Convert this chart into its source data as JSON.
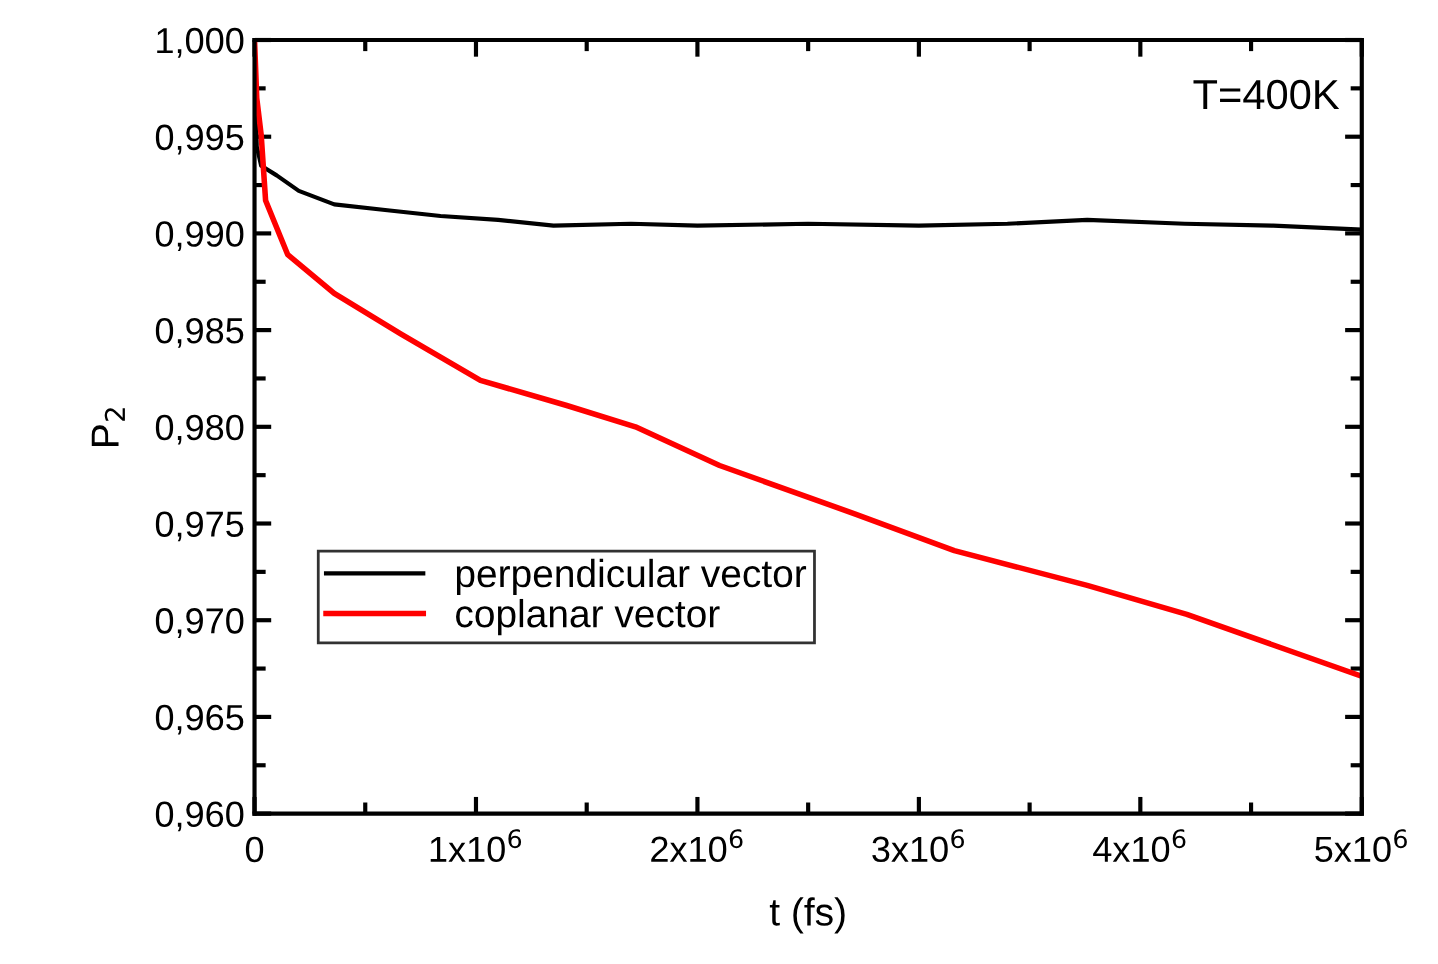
{
  "chart_data": {
    "type": "line",
    "xlabel": "t (fs)",
    "ylabel": "P$_{2}$",
    "annotations": [
      "T=400K"
    ],
    "xlim": [
      0,
      5000000
    ],
    "ylim": [
      0.96,
      1.0
    ],
    "xticks": [
      0,
      {
        "value": 1000000,
        "label": "1x10$^{6}$"
      },
      {
        "value": 2000000,
        "label": "2x10$^{6}$"
      },
      {
        "value": 3000000,
        "label": "3x10$^{6}$"
      },
      {
        "value": 4000000,
        "label": "4x10$^{6}$"
      },
      {
        "value": 5000000,
        "label": "5x10$^{6}$"
      }
    ],
    "yticks": [
      {
        "value": 0.96,
        "label": "0,960"
      },
      {
        "value": 0.965,
        "label": "0,965"
      },
      {
        "value": 0.97,
        "label": "0,970"
      },
      {
        "value": 0.975,
        "label": "0,975"
      },
      {
        "value": 0.98,
        "label": "0,980"
      },
      {
        "value": 0.985,
        "label": "0,985"
      },
      {
        "value": 0.99,
        "label": "0,990"
      },
      {
        "value": 0.995,
        "label": "0,995"
      },
      {
        "value": 1.0,
        "label": "1,000"
      }
    ],
    "grid": false,
    "legend": "left",
    "marker": "none",
    "line_style": "solid",
    "series": [
      {
        "name": "perpendicular vector",
        "color": "#000000",
        "x": [
          0,
          10000,
          30000,
          100000,
          200000,
          360000,
          600000,
          840000,
          1100000,
          1350000,
          1700000,
          2000000,
          2500000,
          3000000,
          3400000,
          3760000,
          4200000,
          4600000,
          5000000
        ],
        "values": [
          1.0,
          0.9945,
          0.9935,
          0.993,
          0.9922,
          0.9915,
          0.9912,
          0.9909,
          0.9907,
          0.9904,
          0.9905,
          0.9904,
          0.9905,
          0.9904,
          0.9905,
          0.9907,
          0.9905,
          0.9904,
          0.9902
        ]
      },
      {
        "name": "coplanar vector",
        "color": "#ff0000",
        "x": [
          0,
          10000,
          30000,
          50000,
          150000,
          360000,
          660000,
          1020000,
          1410000,
          1720000,
          2100000,
          2710000,
          3160000,
          3760000,
          4210000,
          5000000
        ],
        "values": [
          1.0,
          0.997,
          0.9951,
          0.9917,
          0.9889,
          0.9869,
          0.9848,
          0.9824,
          0.9811,
          0.98,
          0.978,
          0.9755,
          0.9736,
          0.9718,
          0.9703,
          0.9671
        ]
      }
    ]
  }
}
